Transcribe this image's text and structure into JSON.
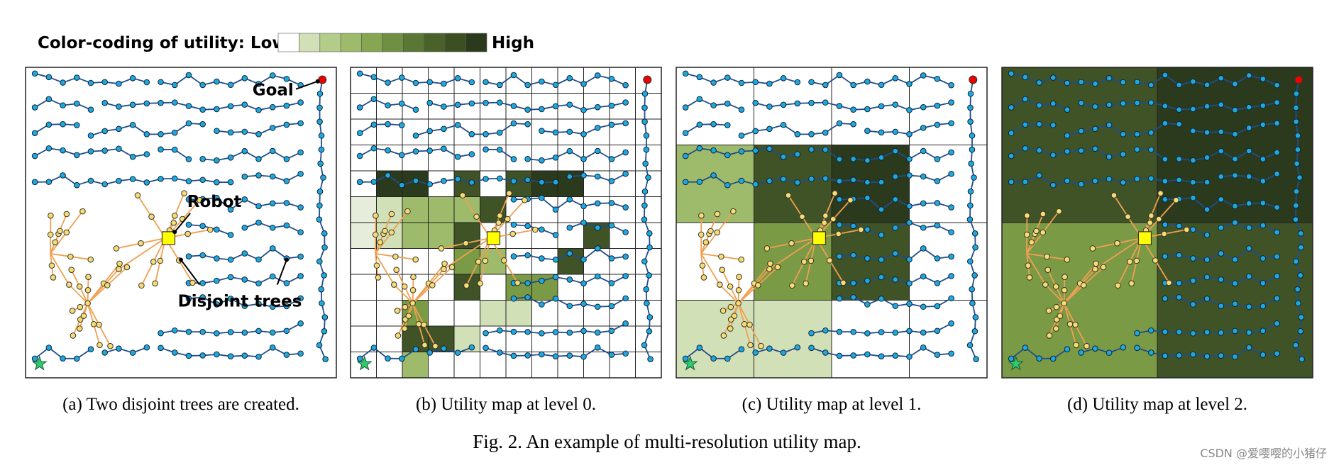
{
  "legend": {
    "label_low": "Color-coding of utility: Low",
    "label_high": "High"
  },
  "annotations": {
    "goal": "Goal",
    "robot": "Robot",
    "disjoint_trees": "Disjoint trees"
  },
  "panels": [
    {
      "caption": "(a) Two disjoint trees are created."
    },
    {
      "caption": "(b) Utility map at level 0."
    },
    {
      "caption": "(c) Utility map at level 1."
    },
    {
      "caption": "(d) Utility map at level 2."
    }
  ],
  "figure_caption": "Fig. 2. An example of multi-resolution utility map.",
  "watermark": "CSDN @爱嘤嘤的小猪仔"
}
